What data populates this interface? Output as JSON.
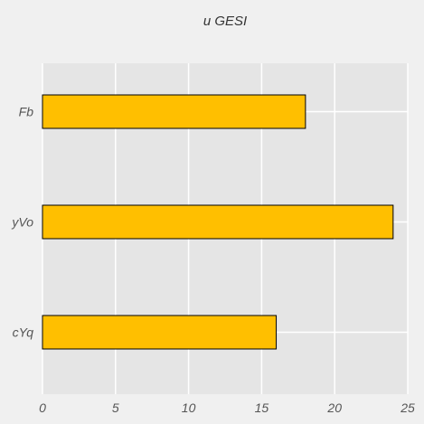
{
  "chart_data": {
    "type": "bar",
    "orientation": "horizontal",
    "title": "u GESI",
    "xlabel": "",
    "ylabel": "",
    "categories": [
      "Fb",
      "yVo",
      "cYq"
    ],
    "values": [
      18,
      24,
      16
    ],
    "xlim": [
      0,
      25
    ],
    "xticks": [
      0,
      5,
      10,
      15,
      20,
      25
    ],
    "grid": true,
    "colors": {
      "bar": "#ffbf00",
      "bar_edge": "#000000",
      "plot_background": "#e5e5e5",
      "grid": "#ffffff",
      "page_background": "#f0f0f0"
    }
  }
}
